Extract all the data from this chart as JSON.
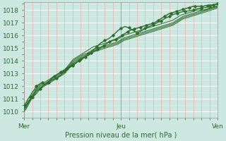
{
  "xlabel": "Pression niveau de la mer( hPa )",
  "bg_color": "#cce8e0",
  "grid_h_color": "#ffffff",
  "grid_v_minor_color": "#f0a0a0",
  "grid_v_major_color": "#c08080",
  "line_color": "#2d6e2d",
  "xlim": [
    0,
    96
  ],
  "ylim": [
    1009.8,
    1018.6
  ],
  "yticks": [
    1010,
    1011,
    1012,
    1013,
    1014,
    1015,
    1016,
    1017,
    1018
  ],
  "xtick_labels": [
    "Mer",
    "Jeu",
    "Ven"
  ],
  "xtick_positions": [
    0,
    48,
    96
  ],
  "series": [
    {
      "y": [
        1010.5,
        1010.7,
        1011.0,
        1011.2,
        1011.5,
        1011.7,
        1012.0,
        1012.1,
        1012.2,
        1012.3,
        1012.1,
        1012.2,
        1012.3,
        1012.5,
        1012.7,
        1012.8,
        1012.9,
        1013.0,
        1013.1,
        1013.2,
        1013.3,
        1013.4,
        1013.5,
        1013.6,
        1013.7,
        1013.8,
        1013.9,
        1014.0,
        1014.1,
        1014.2,
        1014.3,
        1014.4,
        1014.5,
        1014.6,
        1014.7,
        1014.8,
        1014.9,
        1015.0,
        1015.1,
        1015.2,
        1015.3,
        1015.4,
        1015.5,
        1015.6,
        1015.65,
        1015.7,
        1015.8,
        1015.9,
        1016.0,
        1016.1,
        1016.2,
        1016.3,
        1016.4,
        1016.45,
        1016.5,
        1016.55,
        1016.6,
        1016.65,
        1016.7,
        1016.75,
        1016.8,
        1016.85,
        1016.9,
        1016.95,
        1017.0,
        1017.1,
        1017.2,
        1017.3,
        1017.4,
        1017.5,
        1017.6,
        1017.7,
        1017.75,
        1017.8,
        1017.85,
        1017.9,
        1017.95,
        1018.0,
        1018.05,
        1018.1,
        1018.15,
        1018.2,
        1018.25,
        1018.3,
        1018.3,
        1018.3,
        1018.3,
        1018.3,
        1018.3,
        1018.35,
        1018.35,
        1018.4,
        1018.4,
        1018.4,
        1018.45,
        1018.5
      ],
      "markers": true,
      "lw": 1.2
    },
    {
      "y": [
        1010.3,
        1010.5,
        1010.8,
        1011.0,
        1011.3,
        1011.5,
        1011.8,
        1012.0,
        1012.1,
        1012.2,
        1012.3,
        1012.4,
        1012.5,
        1012.6,
        1012.7,
        1012.8,
        1012.9,
        1013.0,
        1013.1,
        1013.2,
        1013.3,
        1013.5,
        1013.7,
        1013.9,
        1014.1,
        1014.2,
        1014.3,
        1014.4,
        1014.5,
        1014.6,
        1014.7,
        1014.8,
        1014.9,
        1015.0,
        1015.1,
        1015.15,
        1015.2,
        1015.25,
        1015.3,
        1015.35,
        1015.4,
        1015.45,
        1015.5,
        1015.55,
        1015.6,
        1015.65,
        1015.7,
        1015.8,
        1015.9,
        1016.0,
        1016.05,
        1016.1,
        1016.15,
        1016.2,
        1016.25,
        1016.3,
        1016.35,
        1016.4,
        1016.45,
        1016.5,
        1016.55,
        1016.6,
        1016.65,
        1016.7,
        1016.75,
        1016.8,
        1016.85,
        1016.9,
        1016.95,
        1017.0,
        1017.05,
        1017.1,
        1017.15,
        1017.2,
        1017.3,
        1017.4,
        1017.5,
        1017.6,
        1017.65,
        1017.7,
        1017.75,
        1017.8,
        1017.85,
        1017.9,
        1017.95,
        1018.0,
        1018.0,
        1018.0,
        1018.0,
        1018.05,
        1018.1,
        1018.15,
        1018.2,
        1018.25,
        1018.3,
        1018.35
      ],
      "markers": false,
      "lw": 0.8
    },
    {
      "y": [
        1010.2,
        1010.4,
        1010.7,
        1011.0,
        1011.2,
        1011.5,
        1011.7,
        1011.9,
        1012.0,
        1012.1,
        1012.2,
        1012.3,
        1012.4,
        1012.5,
        1012.6,
        1012.7,
        1012.8,
        1012.9,
        1013.0,
        1013.1,
        1013.2,
        1013.4,
        1013.6,
        1013.8,
        1014.0,
        1014.1,
        1014.2,
        1014.3,
        1014.4,
        1014.5,
        1014.55,
        1014.6,
        1014.7,
        1014.8,
        1014.9,
        1014.95,
        1015.0,
        1015.05,
        1015.1,
        1015.15,
        1015.2,
        1015.25,
        1015.3,
        1015.35,
        1015.4,
        1015.45,
        1015.5,
        1015.6,
        1015.7,
        1015.8,
        1015.85,
        1015.9,
        1015.95,
        1016.0,
        1016.05,
        1016.1,
        1016.15,
        1016.2,
        1016.25,
        1016.3,
        1016.35,
        1016.4,
        1016.45,
        1016.5,
        1016.55,
        1016.6,
        1016.65,
        1016.7,
        1016.75,
        1016.8,
        1016.85,
        1016.9,
        1016.95,
        1017.0,
        1017.1,
        1017.2,
        1017.3,
        1017.4,
        1017.5,
        1017.55,
        1017.6,
        1017.65,
        1017.7,
        1017.75,
        1017.8,
        1017.85,
        1017.9,
        1017.95,
        1018.0,
        1018.0,
        1018.05,
        1018.1,
        1018.15,
        1018.2,
        1018.25,
        1018.3
      ],
      "markers": false,
      "lw": 0.8
    },
    {
      "y": [
        1010.1,
        1010.3,
        1010.6,
        1010.9,
        1011.1,
        1011.4,
        1011.6,
        1011.8,
        1011.9,
        1012.0,
        1012.1,
        1012.2,
        1012.3,
        1012.4,
        1012.5,
        1012.6,
        1012.7,
        1012.8,
        1012.9,
        1013.0,
        1013.1,
        1013.3,
        1013.5,
        1013.7,
        1013.9,
        1014.0,
        1014.1,
        1014.2,
        1014.3,
        1014.4,
        1014.45,
        1014.5,
        1014.6,
        1014.7,
        1014.8,
        1014.85,
        1014.9,
        1014.95,
        1015.0,
        1015.05,
        1015.1,
        1015.15,
        1015.2,
        1015.25,
        1015.3,
        1015.35,
        1015.4,
        1015.5,
        1015.6,
        1015.7,
        1015.75,
        1015.8,
        1015.85,
        1015.9,
        1015.95,
        1016.0,
        1016.05,
        1016.1,
        1016.15,
        1016.2,
        1016.25,
        1016.3,
        1016.35,
        1016.4,
        1016.45,
        1016.5,
        1016.55,
        1016.6,
        1016.65,
        1016.7,
        1016.75,
        1016.8,
        1016.85,
        1016.9,
        1017.0,
        1017.1,
        1017.2,
        1017.3,
        1017.4,
        1017.45,
        1017.5,
        1017.55,
        1017.6,
        1017.65,
        1017.7,
        1017.75,
        1017.8,
        1017.85,
        1017.9,
        1017.95,
        1018.0,
        1018.05,
        1018.1,
        1018.15,
        1018.2,
        1018.25
      ],
      "markers": false,
      "lw": 0.8
    },
    {
      "y": [
        1010.0,
        1010.2,
        1010.5,
        1010.8,
        1011.1,
        1011.3,
        1011.6,
        1011.7,
        1011.8,
        1011.9,
        1012.0,
        1012.1,
        1012.2,
        1012.3,
        1012.4,
        1012.5,
        1012.6,
        1012.7,
        1012.8,
        1012.9,
        1013.0,
        1013.2,
        1013.4,
        1013.6,
        1013.8,
        1013.9,
        1014.0,
        1014.1,
        1014.2,
        1014.3,
        1014.35,
        1014.4,
        1014.5,
        1014.6,
        1014.7,
        1014.75,
        1014.8,
        1014.85,
        1014.9,
        1014.95,
        1015.0,
        1015.05,
        1015.1,
        1015.15,
        1015.2,
        1015.25,
        1015.3,
        1015.4,
        1015.5,
        1015.6,
        1015.65,
        1015.7,
        1015.75,
        1015.8,
        1015.85,
        1015.9,
        1015.95,
        1016.0,
        1016.05,
        1016.1,
        1016.15,
        1016.2,
        1016.25,
        1016.3,
        1016.35,
        1016.4,
        1016.45,
        1016.5,
        1016.55,
        1016.6,
        1016.65,
        1016.7,
        1016.75,
        1016.8,
        1016.9,
        1017.0,
        1017.1,
        1017.2,
        1017.3,
        1017.35,
        1017.4,
        1017.45,
        1017.5,
        1017.55,
        1017.6,
        1017.65,
        1017.7,
        1017.75,
        1017.8,
        1017.85,
        1017.9,
        1017.95,
        1018.0,
        1018.05,
        1018.1,
        1018.2
      ],
      "markers": false,
      "lw": 0.8
    }
  ],
  "zigzag": {
    "x": [
      0,
      2,
      4,
      6,
      8,
      10,
      12,
      14,
      16,
      18,
      20,
      22,
      24,
      26,
      28,
      30,
      32,
      34,
      36,
      38,
      40,
      42,
      44,
      46,
      48,
      50,
      52,
      54,
      56,
      58,
      60,
      62,
      64,
      66,
      68,
      70,
      72,
      74,
      76,
      78,
      80,
      82,
      84,
      86,
      88,
      90,
      92,
      94,
      96
    ],
    "y": [
      1010.4,
      1010.7,
      1011.1,
      1011.4,
      1011.8,
      1012.1,
      1012.3,
      1012.5,
      1012.6,
      1012.85,
      1013.15,
      1013.4,
      1013.6,
      1013.85,
      1014.1,
      1014.3,
      1014.55,
      1014.8,
      1015.1,
      1015.4,
      1015.6,
      1015.75,
      1016.0,
      1016.3,
      1016.55,
      1016.7,
      1016.6,
      1016.4,
      1016.2,
      1016.35,
      1016.55,
      1016.7,
      1016.85,
      1017.0,
      1017.15,
      1017.35,
      1017.5,
      1017.65,
      1017.75,
      1017.85,
      1017.9,
      1017.95,
      1018.0,
      1018.1,
      1018.15,
      1018.2,
      1018.3,
      1018.4,
      1018.5
    ],
    "markers": true,
    "lw": 1.0
  }
}
